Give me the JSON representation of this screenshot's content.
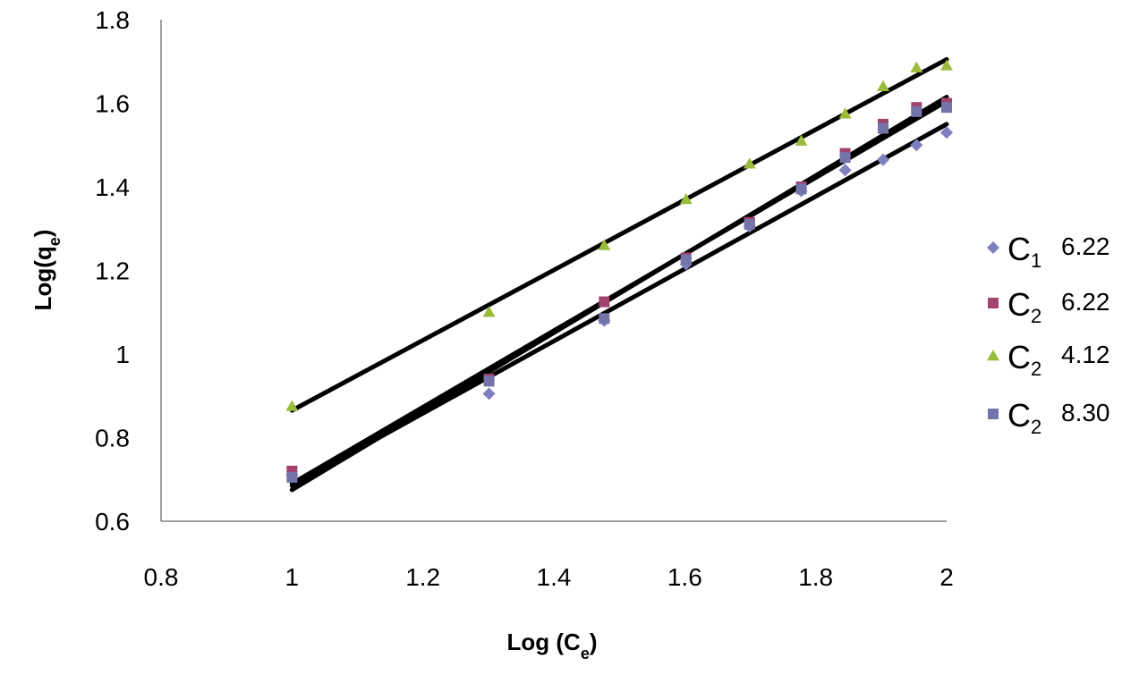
{
  "chart_data": {
    "type": "scatter",
    "title": "",
    "xlabel": {
      "main": "Log (C",
      "sub": "e",
      "close": ")"
    },
    "ylabel": {
      "main": "Log(q",
      "sub": "e",
      "close": ")"
    },
    "xlim": [
      0.8,
      2.0
    ],
    "ylim": [
      0.6,
      1.8
    ],
    "xticks": [
      "0.8",
      "1",
      "1.2",
      "1.4",
      "1.6",
      "1.8",
      "2"
    ],
    "yticks": [
      "0.6",
      "0.8",
      "1",
      "1.2",
      "1.4",
      "1.6",
      "1.8"
    ],
    "grid": false,
    "legend_position": "right",
    "series": [
      {
        "name": "C1 6.22",
        "legend": {
          "letter": "C",
          "sub": "1",
          "value": "6.22"
        },
        "marker": "diamond",
        "color": "#7f7fbf",
        "x": [
          1.0,
          1.301,
          1.477,
          1.602,
          1.699,
          1.778,
          1.845,
          1.903,
          1.954,
          2.0
        ],
        "y": [
          0.71,
          0.905,
          1.08,
          1.215,
          1.305,
          1.39,
          1.44,
          1.465,
          1.5,
          1.53
        ],
        "fit": [
          [
            1.0,
            0.685
          ],
          [
            2.0,
            1.55
          ]
        ]
      },
      {
        "name": "C2 6.22",
        "legend": {
          "letter": "C",
          "sub": "2",
          "value": "6.22"
        },
        "marker": "square",
        "color": "#a0446e",
        "x": [
          1.0,
          1.301,
          1.477,
          1.602,
          1.699,
          1.778,
          1.845,
          1.903,
          1.954,
          2.0
        ],
        "y": [
          0.72,
          0.94,
          1.125,
          1.23,
          1.315,
          1.4,
          1.48,
          1.55,
          1.59,
          1.6
        ],
        "fit": [
          [
            1.0,
            0.675
          ],
          [
            2.0,
            1.615
          ]
        ]
      },
      {
        "name": "C2 4.12",
        "legend": {
          "letter": "C",
          "sub": "2",
          "value": "4.12"
        },
        "marker": "triangle",
        "color": "#9bbb3b",
        "x": [
          1.0,
          1.301,
          1.477,
          1.602,
          1.699,
          1.778,
          1.845,
          1.903,
          1.954,
          2.0
        ],
        "y": [
          0.875,
          1.1,
          1.26,
          1.37,
          1.455,
          1.51,
          1.575,
          1.64,
          1.685,
          1.69
        ],
        "fit": [
          [
            1.0,
            0.865
          ],
          [
            2.0,
            1.705
          ]
        ]
      },
      {
        "name": "C2 8.30",
        "legend": {
          "letter": "C",
          "sub": "2",
          "value": "8.30"
        },
        "marker": "square",
        "color": "#7474a8",
        "x": [
          1.0,
          1.301,
          1.477,
          1.602,
          1.699,
          1.778,
          1.845,
          1.903,
          1.954,
          2.0
        ],
        "y": [
          0.705,
          0.935,
          1.085,
          1.225,
          1.31,
          1.395,
          1.47,
          1.54,
          1.58,
          1.59
        ],
        "fit": [
          [
            1.0,
            0.69
          ],
          [
            2.0,
            1.605
          ]
        ]
      }
    ]
  }
}
